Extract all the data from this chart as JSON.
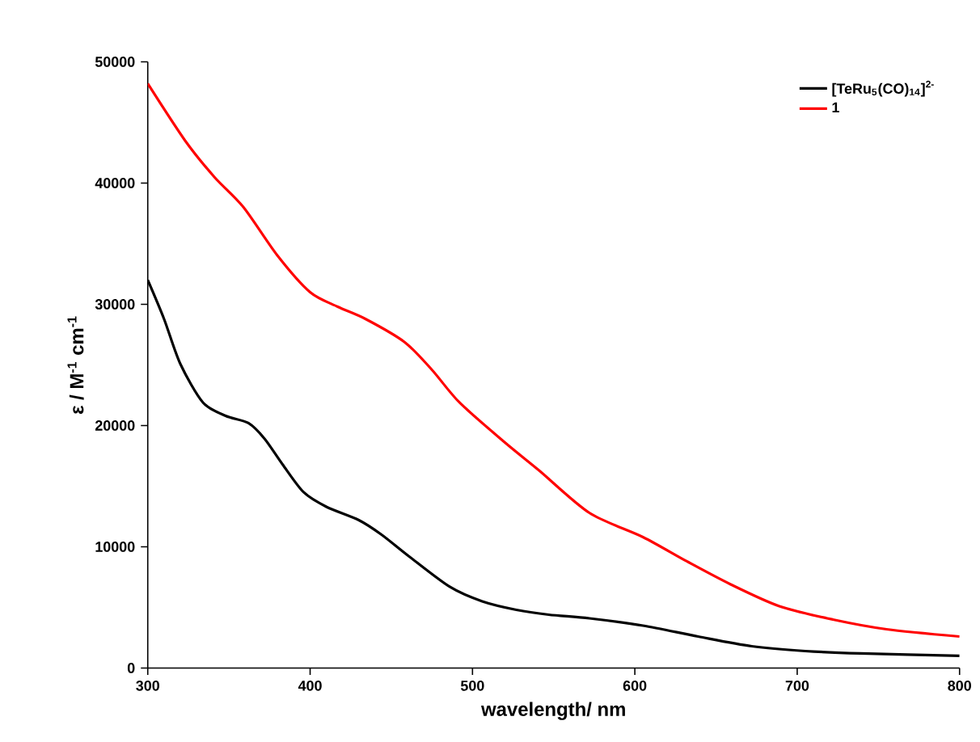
{
  "chart_data": {
    "type": "line",
    "xlabel": "wavelength/ nm",
    "ylabel": "ε / M$^{-1}$ cm$^{-1}$",
    "xlim": [
      300,
      800
    ],
    "xticks": [
      300,
      400,
      500,
      600,
      700,
      800
    ],
    "ylim": [
      0,
      50000
    ],
    "yticks": [
      0,
      10000,
      20000,
      30000,
      40000,
      50000
    ],
    "grid": false,
    "legend": "top right",
    "marker": "none",
    "line_style": "solid",
    "series": [
      {
        "name": "[TeRu$_{5}$(CO)$_{14}$]$^{2-}$",
        "color": "#000000",
        "x": [
          300,
          310,
          320,
          334,
          348,
          362,
          372,
          383,
          396,
          410,
          430,
          444,
          461,
          486,
          506,
          527,
          547,
          572,
          605,
          639,
          672,
          705,
          739,
          800
        ],
        "values": [
          32000,
          28800,
          25100,
          21900,
          20800,
          20200,
          18900,
          16800,
          14500,
          13300,
          12200,
          11000,
          9200,
          6700,
          5500,
          4800,
          4400,
          4100,
          3500,
          2600,
          1800,
          1400,
          1200,
          1000
        ]
      },
      {
        "name": "1",
        "color": "#ff0000",
        "x": [
          300,
          323,
          341,
          359,
          380,
          400,
          417,
          434,
          458,
          475,
          492,
          520,
          541,
          572,
          605,
          632,
          659,
          689,
          722,
          755,
          800
        ],
        "values": [
          48200,
          43500,
          40500,
          38000,
          34000,
          31000,
          29800,
          28800,
          26900,
          24600,
          21900,
          18600,
          16300,
          12800,
          10800,
          8800,
          6900,
          5100,
          4000,
          3200,
          2600
        ]
      }
    ]
  }
}
